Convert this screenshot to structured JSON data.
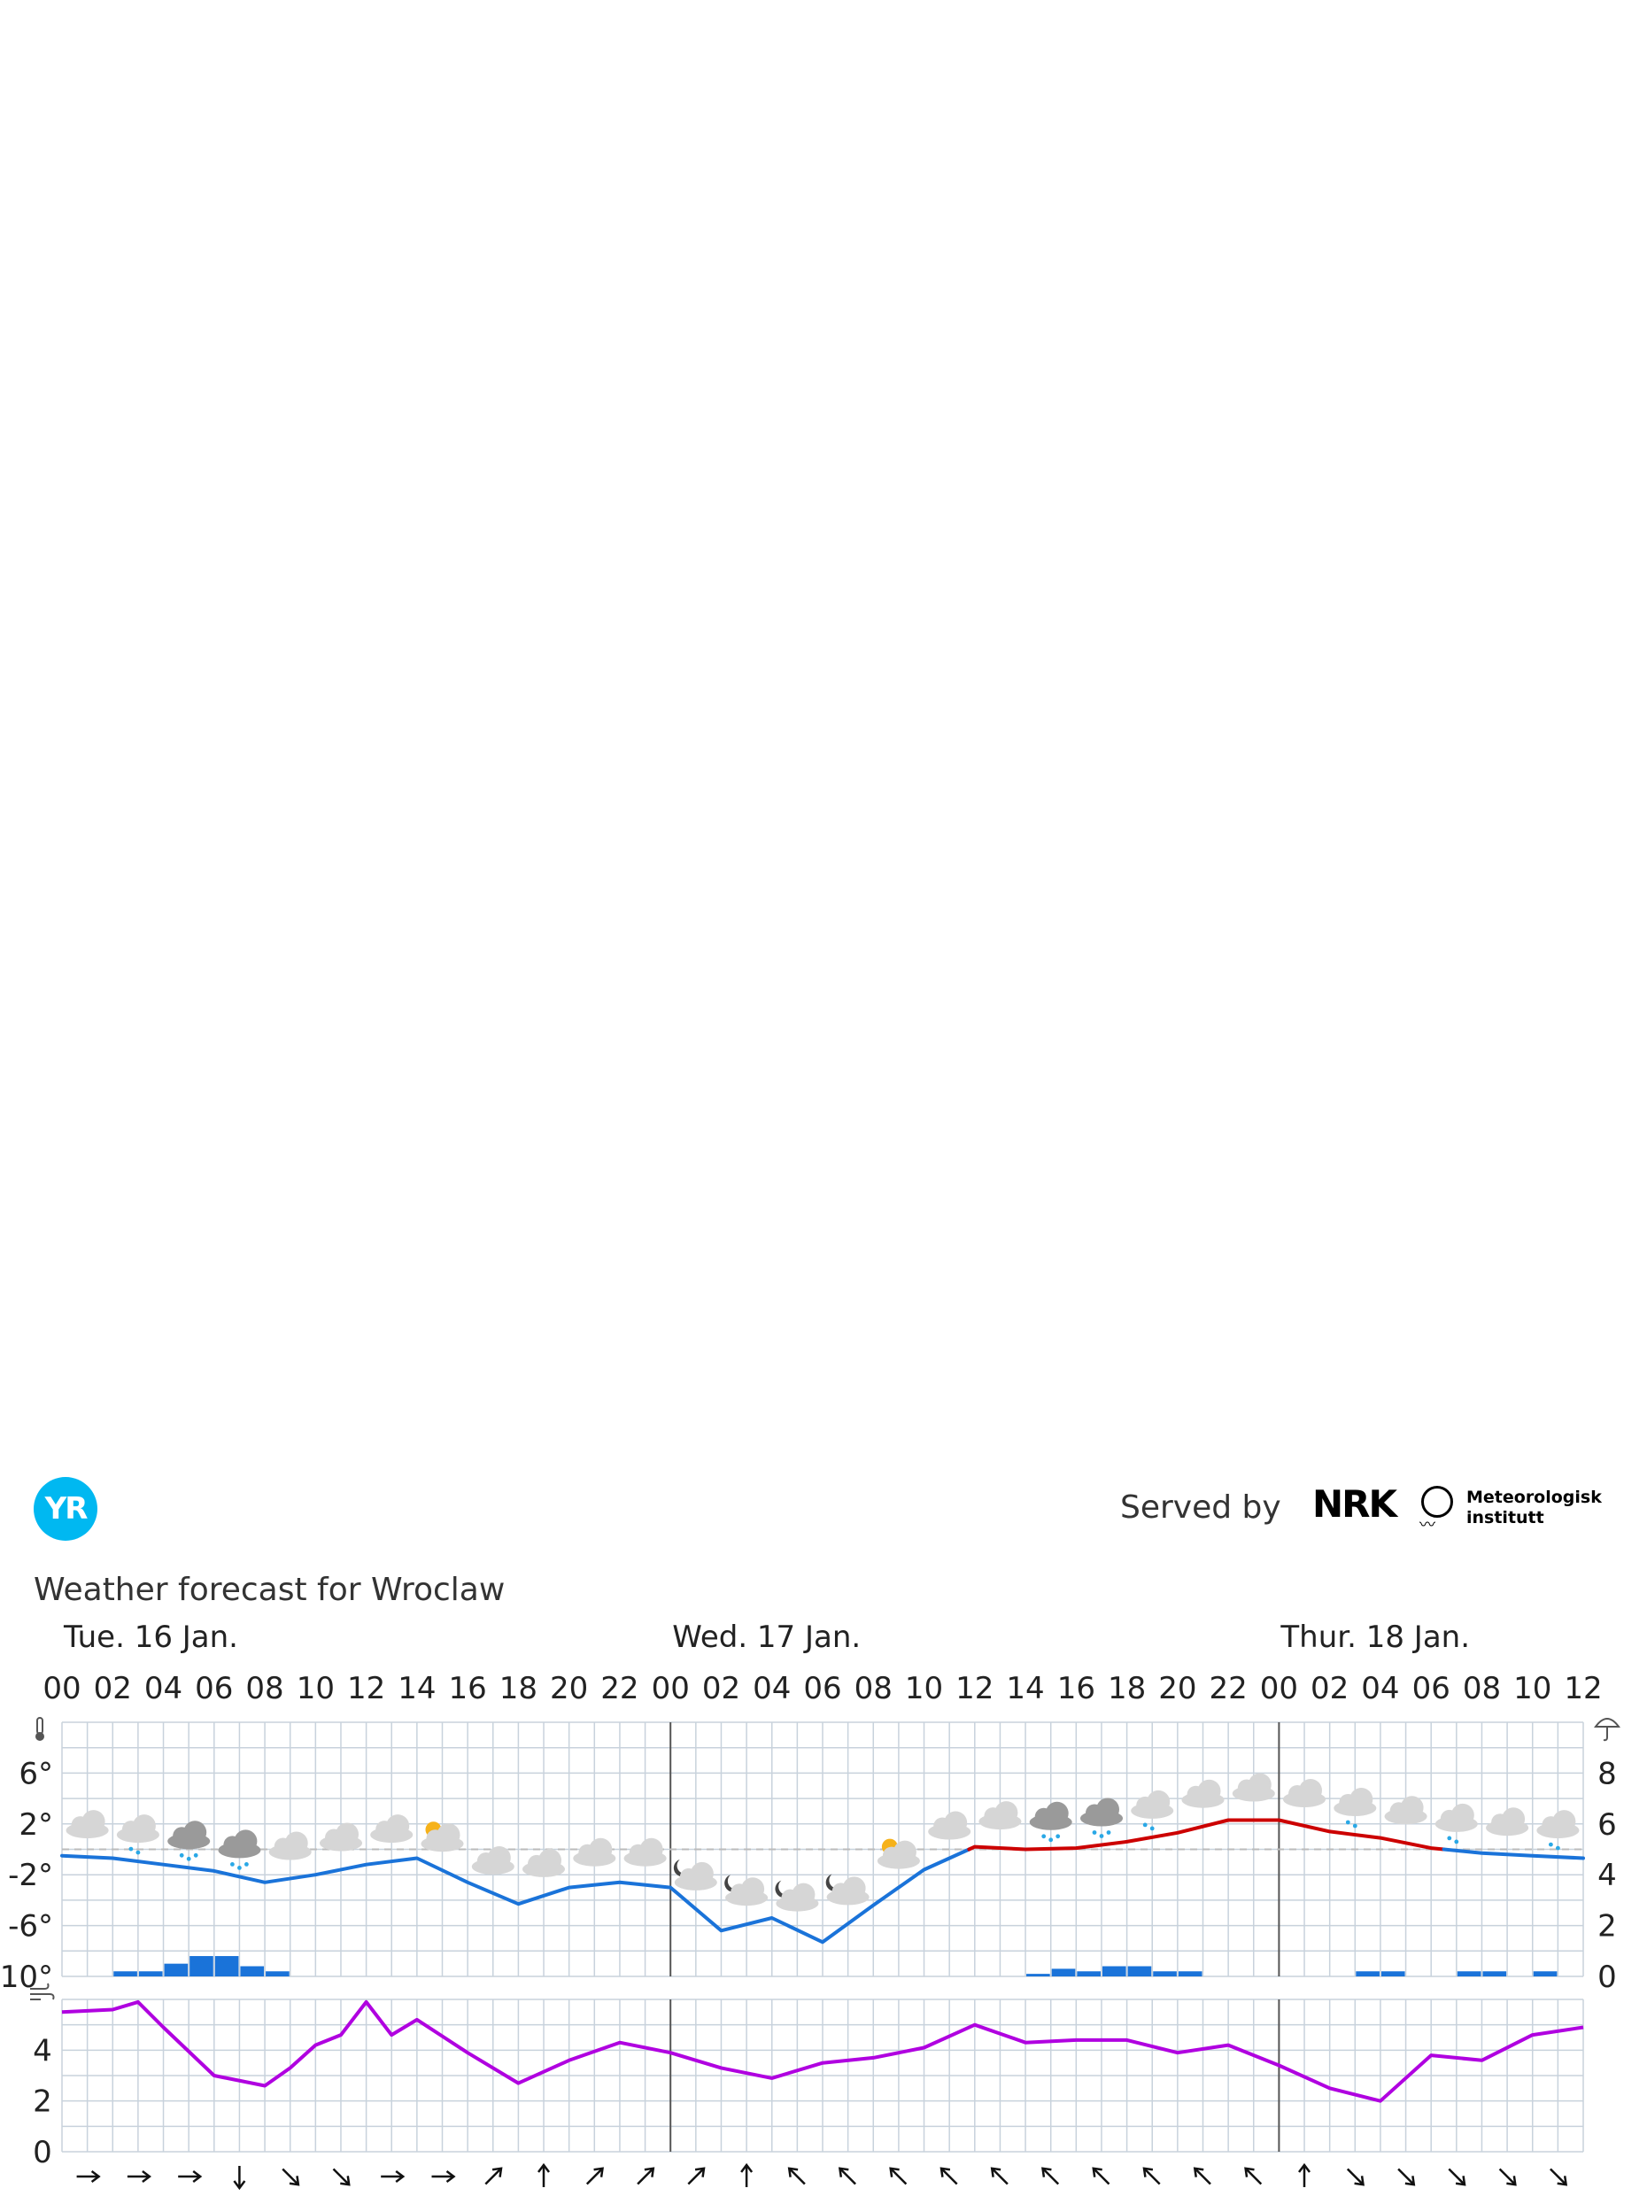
{
  "header": {
    "logo_text": "YR",
    "served_by": "Served by",
    "nrk_logo": "NRK",
    "met_logo": "Meteorologisk institutt"
  },
  "page_title": "Weather forecast for Wroclaw",
  "colors": {
    "temp_cold": "#1a73d9",
    "temp_warm": "#cc0000",
    "precip": "#1a73d9",
    "wind": "#b000e0",
    "grid": "#c8d2dc"
  },
  "chart_data": [
    {
      "type": "line",
      "title": "",
      "days": [
        "Tue. 16 Jan.",
        "Wed. 17 Jan.",
        "Thur. 18 Jan."
      ],
      "x_tick_labels": [
        "00",
        "02",
        "04",
        "06",
        "08",
        "10",
        "12",
        "14",
        "16",
        "18",
        "20",
        "22",
        "00",
        "02",
        "04",
        "06",
        "08",
        "10",
        "12",
        "14",
        "16",
        "18",
        "20",
        "22",
        "00",
        "02",
        "04",
        "06",
        "08",
        "10",
        "12"
      ],
      "y_left_ticks": [
        "6°",
        "2°",
        "-2°",
        "-6°",
        "-10°"
      ],
      "y_right_ticks": [
        "8",
        "6",
        "4",
        "2",
        "0"
      ],
      "ylim_temperature": [
        -10,
        10
      ],
      "ylim_precipitation": [
        0,
        10
      ],
      "grid": true,
      "freezing_line": 0,
      "series": [
        {
          "name": "",
          "unit": "°C",
          "x_hours": [
            0,
            2,
            4,
            6,
            8,
            10,
            12,
            14,
            16,
            18,
            20,
            22,
            24,
            26,
            28,
            30,
            32,
            34,
            36,
            38,
            40,
            42,
            44,
            46,
            48,
            50,
            52,
            54,
            56,
            58,
            60
          ],
          "values": [
            -0.5,
            -0.7,
            -1.2,
            -1.7,
            -2.6,
            -2.0,
            -1.2,
            -0.7,
            -2.6,
            -4.3,
            -3.0,
            -2.6,
            -3.0,
            -6.4,
            -5.4,
            -7.3,
            -4.4,
            -1.6,
            0.2,
            0,
            0.1,
            0.6,
            1.3,
            2.3,
            2.3,
            1.4,
            0.9,
            0.1,
            -0.3,
            -0.5,
            -0.7
          ]
        },
        {
          "name": "",
          "type": "bar",
          "unit": "mm",
          "x_hours": [
            2,
            3,
            4,
            5,
            6,
            7,
            8,
            9,
            38,
            39,
            40,
            41,
            42,
            43,
            44,
            45,
            46,
            51,
            52,
            55,
            56,
            58
          ],
          "values": [
            0.2,
            0.2,
            0.5,
            0.8,
            0.8,
            0.4,
            0.2,
            0,
            0.1,
            0.3,
            0.2,
            0.4,
            0.4,
            0.2,
            0.2,
            0,
            0,
            0.2,
            0.2,
            0.2,
            0.2,
            0.2
          ]
        }
      ],
      "weather_icons": [
        "cloudy",
        "light-snow",
        "snow",
        "snow",
        "cloudy",
        "cloudy",
        "cloudy",
        "partly-cloudy-day",
        "cloudy",
        "cloudy",
        "cloudy",
        "cloudy",
        "partly-cloudy-night",
        "partly-cloudy-night",
        "partly-cloudy-night",
        "partly-cloudy-night",
        "partly-cloudy-day",
        "cloudy",
        "cloudy",
        "sleet",
        "sleet",
        "light-sleet",
        "cloudy",
        "cloudy",
        "cloudy",
        "light-rain",
        "cloudy",
        "light-sleet",
        "cloudy",
        "light-snow"
      ]
    },
    {
      "type": "line",
      "title": "",
      "y_left_ticks": [
        "4",
        "2",
        "0"
      ],
      "ylim": [
        0,
        6
      ],
      "grid": true,
      "series": [
        {
          "name": "",
          "unit": "m/s",
          "x_hours": [
            0,
            2,
            3,
            4,
            6,
            8,
            9,
            10,
            11,
            12,
            13,
            14,
            16,
            18,
            20,
            22,
            24,
            26,
            28,
            30,
            32,
            34,
            36,
            38,
            40,
            42,
            44,
            46,
            48,
            50,
            52,
            54,
            56,
            58,
            60
          ],
          "values": [
            5.5,
            5.6,
            5.9,
            4.9,
            3.0,
            2.6,
            3.3,
            4.2,
            4.6,
            5.9,
            4.6,
            5.2,
            3.9,
            2.7,
            3.6,
            4.3,
            3.9,
            3.3,
            2.9,
            3.5,
            3.7,
            4.1,
            5.0,
            4.3,
            4.4,
            4.4,
            3.9,
            4.2,
            3.4,
            2.5,
            2.0,
            3.8,
            3.6,
            4.6,
            4.9
          ]
        }
      ],
      "wind_directions": [
        "E",
        "E",
        "E",
        "S",
        "SE",
        "SE",
        "E",
        "E",
        "NE",
        "N",
        "NE",
        "NE",
        "NE",
        "N",
        "NW",
        "NW",
        "NW",
        "NW",
        "NW",
        "NW",
        "NW",
        "NW",
        "NW",
        "NW",
        "N",
        "SE",
        "SE",
        "SE",
        "SE",
        "SE"
      ]
    }
  ]
}
